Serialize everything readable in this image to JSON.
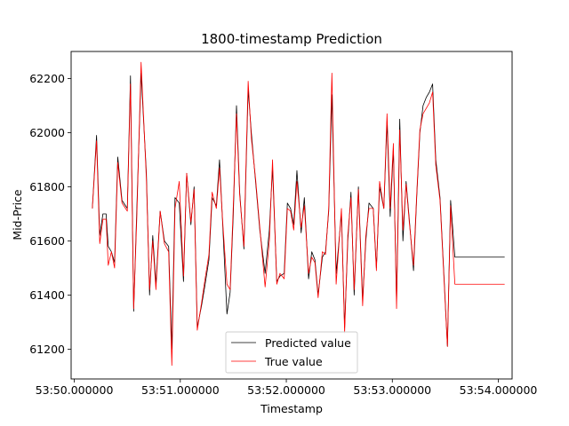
{
  "chart_data": {
    "type": "line",
    "title": "1800-timestamp Prediction",
    "xlabel": "Timestamp",
    "ylabel": "Mid-Price",
    "x_ticks": [
      {
        "value": 0,
        "label": "53:50.000000"
      },
      {
        "value": 1,
        "label": "53:51.000000"
      },
      {
        "value": 2,
        "label": "53:52.000000"
      },
      {
        "value": 3,
        "label": "53:53.000000"
      },
      {
        "value": 4,
        "label": "53:54.000000"
      }
    ],
    "y_ticks": [
      61200,
      61400,
      61600,
      61800,
      62000,
      62200
    ],
    "xlim": [
      -0.03,
      4.13
    ],
    "ylim": [
      61090,
      62300
    ],
    "grid": false,
    "legend_position": "lower center",
    "x": [
      0.17,
      0.21,
      0.24,
      0.27,
      0.3,
      0.32,
      0.35,
      0.38,
      0.41,
      0.45,
      0.5,
      0.53,
      0.56,
      0.59,
      0.63,
      0.68,
      0.71,
      0.74,
      0.77,
      0.81,
      0.85,
      0.89,
      0.92,
      0.95,
      0.99,
      1.03,
      1.06,
      1.1,
      1.13,
      1.16,
      1.2,
      1.23,
      1.27,
      1.3,
      1.34,
      1.37,
      1.4,
      1.44,
      1.47,
      1.5,
      1.53,
      1.56,
      1.6,
      1.64,
      1.67,
      1.71,
      1.75,
      1.8,
      1.84,
      1.87,
      1.91,
      1.94,
      1.98,
      2.01,
      2.04,
      2.07,
      2.1,
      2.14,
      2.17,
      2.21,
      2.24,
      2.27,
      2.3,
      2.34,
      2.37,
      2.4,
      2.43,
      2.47,
      2.52,
      2.55,
      2.58,
      2.61,
      2.64,
      2.68,
      2.72,
      2.75,
      2.78,
      2.82,
      2.85,
      2.88,
      2.92,
      2.95,
      2.98,
      3.01,
      3.04,
      3.07,
      3.1,
      3.13,
      3.16,
      3.2,
      3.23,
      3.26,
      3.29,
      3.32,
      3.35,
      3.38,
      3.41,
      3.45,
      3.49,
      3.52,
      3.55,
      3.59,
      3.63,
      3.67,
      3.71,
      3.77,
      3.83,
      3.86,
      3.9,
      3.94,
      3.98,
      4.02,
      4.06
    ],
    "series": [
      {
        "name": "Predicted value",
        "color": "#000000",
        "values": [
          61720,
          61990,
          61620,
          61700,
          61700,
          61580,
          61560,
          61520,
          61910,
          61750,
          61720,
          62210,
          61340,
          61720,
          62220,
          61850,
          61400,
          61620,
          61440,
          61710,
          61600,
          61580,
          61200,
          61760,
          61740,
          61450,
          61850,
          61660,
          61800,
          61280,
          61360,
          61430,
          61530,
          61760,
          61730,
          61900,
          61660,
          61330,
          61410,
          61700,
          62100,
          61780,
          61570,
          62160,
          62000,
          61820,
          61640,
          61480,
          61640,
          61870,
          61450,
          61470,
          61480,
          61740,
          61720,
          61660,
          61860,
          61630,
          61760,
          61460,
          61560,
          61530,
          61400,
          61540,
          61560,
          61710,
          62140,
          61480,
          61700,
          61280,
          61600,
          61780,
          61400,
          61800,
          61380,
          61600,
          61740,
          61720,
          61500,
          61800,
          61720,
          62040,
          61690,
          61940,
          61370,
          62050,
          61600,
          61820,
          61680,
          61490,
          61760,
          62000,
          62100,
          62130,
          62150,
          62180,
          61900,
          61760,
          61450,
          61210,
          61750,
          61540,
          61540,
          61540,
          61540,
          61540,
          61540,
          61540,
          61540,
          61540,
          61540,
          61540,
          61540
        ]
      },
      {
        "name": "True value",
        "color": "#ff0000",
        "values": [
          61720,
          61970,
          61590,
          61680,
          61680,
          61510,
          61560,
          61500,
          61890,
          61740,
          61710,
          62180,
          61350,
          61690,
          62260,
          61830,
          61420,
          61600,
          61420,
          61710,
          61590,
          61560,
          61140,
          61720,
          61820,
          61470,
          61850,
          61670,
          61790,
          61270,
          61370,
          61450,
          61550,
          61780,
          61720,
          61870,
          61670,
          61440,
          61420,
          61730,
          62070,
          61770,
          61580,
          62190,
          61980,
          61830,
          61650,
          61430,
          61600,
          61900,
          61440,
          61480,
          61460,
          61720,
          61710,
          61640,
          61820,
          61650,
          61730,
          61480,
          61540,
          61520,
          61390,
          61560,
          61550,
          61720,
          62220,
          61440,
          61720,
          61260,
          61620,
          61760,
          61420,
          61790,
          61360,
          61620,
          61720,
          61720,
          61490,
          61820,
          61720,
          62070,
          61720,
          61960,
          61350,
          62010,
          61640,
          61810,
          61670,
          61510,
          61770,
          62010,
          62070,
          62090,
          62110,
          62150,
          61880,
          61750,
          61440,
          61210,
          61730,
          61440,
          61440,
          61440,
          61440,
          61440,
          61440,
          61440,
          61440,
          61440,
          61440,
          61440,
          61440
        ]
      }
    ]
  }
}
